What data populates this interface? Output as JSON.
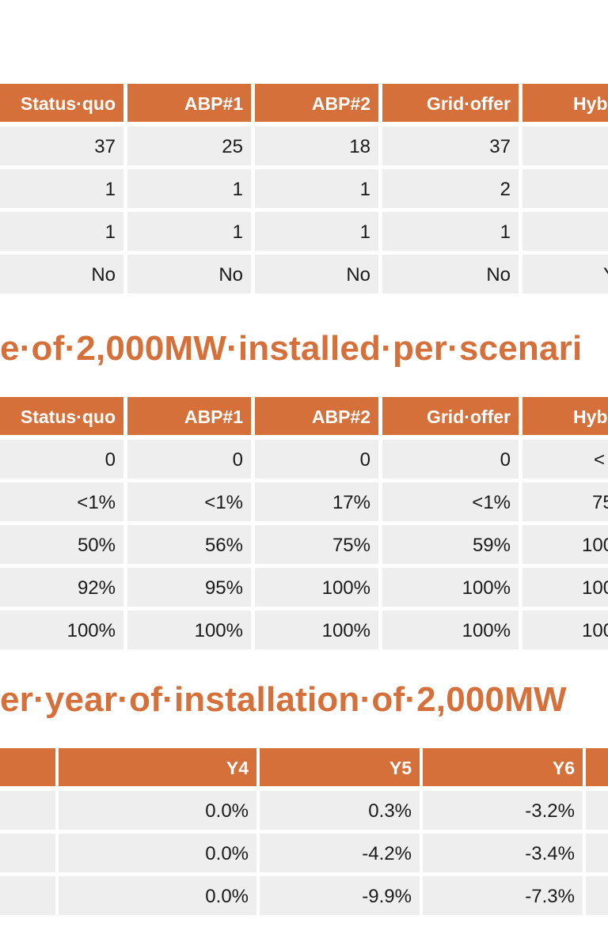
{
  "table1": {
    "headers": [
      "Status·quo",
      "ABP#1",
      "ABP#2",
      "Grid·offer",
      "Hyb"
    ],
    "rows": [
      [
        "37",
        "25",
        "18",
        "37",
        ""
      ],
      [
        "1",
        "1",
        "1",
        "2",
        ""
      ],
      [
        "1",
        "1",
        "1",
        "1",
        ""
      ],
      [
        "No",
        "No",
        "No",
        "No",
        "Y"
      ]
    ]
  },
  "heading2": "e·of·2,000MW·installed·per·scenari",
  "table2": {
    "headers": [
      "Status·quo",
      "ABP#1",
      "ABP#2",
      "Grid·offer",
      "Hyb"
    ],
    "rows": [
      [
        "0",
        "0",
        "0",
        "0",
        "<"
      ],
      [
        "<1%",
        "<1%",
        "17%",
        "<1%",
        "75"
      ],
      [
        "50%",
        "56%",
        "75%",
        "59%",
        "100"
      ],
      [
        "92%",
        "95%",
        "100%",
        "100%",
        "100"
      ],
      [
        "100%",
        "100%",
        "100%",
        "100%",
        "100"
      ]
    ]
  },
  "heading3": "er·year·of·installation·of·2,000MW",
  "table3": {
    "headers": [
      "",
      "Y4",
      "Y5",
      "Y6",
      ""
    ],
    "rows": [
      [
        "",
        "0.0%",
        "0.3%",
        "-3.2%",
        ""
      ],
      [
        "",
        "0.0%",
        "-4.2%",
        "-3.4%",
        ""
      ],
      [
        "",
        "0.0%",
        "-9.9%",
        "-7.3%",
        ""
      ]
    ]
  },
  "colors": {
    "accent": "#d5703b",
    "cell_bg": "#eeeeee"
  }
}
